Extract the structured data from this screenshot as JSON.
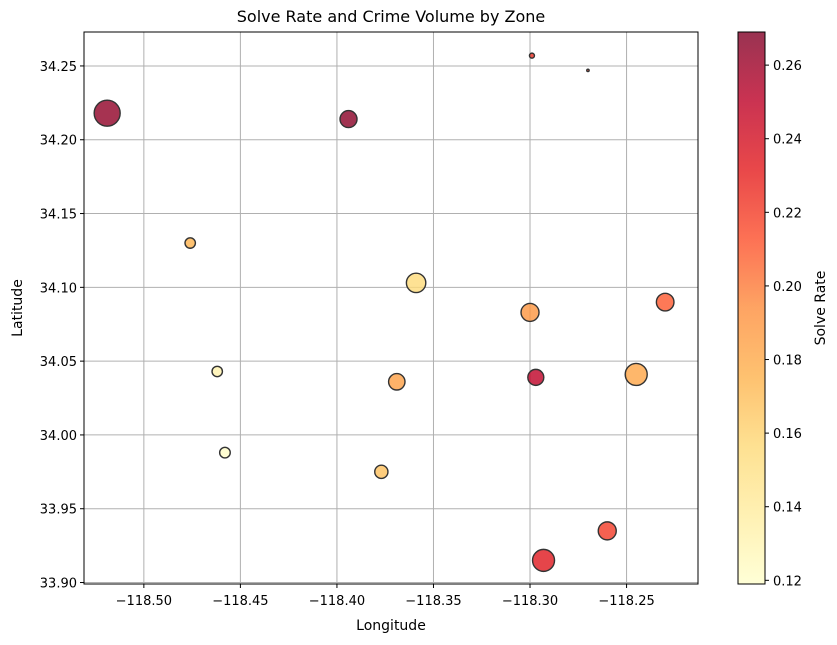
{
  "chart_data": {
    "type": "scatter",
    "title": "Solve Rate and Crime Volume by Zone",
    "xlabel": "Longitude",
    "ylabel": "Latitude",
    "xlim": [
      -118.531,
      -118.213
    ],
    "ylim": [
      33.899,
      34.273
    ],
    "xticks": [
      -118.5,
      -118.45,
      -118.4,
      -118.35,
      -118.3,
      -118.25
    ],
    "xtick_labels": [
      "−118.50",
      "−118.45",
      "−118.40",
      "−118.35",
      "−118.30",
      "−118.25"
    ],
    "yticks": [
      33.9,
      33.95,
      34.0,
      34.05,
      34.1,
      34.15,
      34.2,
      34.25
    ],
    "ytick_labels": [
      "33.90",
      "33.95",
      "34.00",
      "34.05",
      "34.10",
      "34.15",
      "34.20",
      "34.25"
    ],
    "grid": true,
    "colorbar": {
      "label": "Solve Rate",
      "min": 0.119,
      "max": 0.269,
      "colormap": "YlOrRd",
      "alpha": 0.8,
      "ticks": [
        0.12,
        0.14,
        0.16,
        0.18,
        0.2,
        0.22,
        0.24,
        0.26
      ],
      "tick_labels": [
        "0.12",
        "0.14",
        "0.16",
        "0.18",
        "0.20",
        "0.22",
        "0.24",
        "0.26"
      ]
    },
    "points": [
      {
        "x": -118.519,
        "y": 34.218,
        "solve_rate": 0.264,
        "size": 13.0
      },
      {
        "x": -118.394,
        "y": 34.214,
        "solve_rate": 0.266,
        "size": 8.5
      },
      {
        "x": -118.299,
        "y": 34.257,
        "solve_rate": 0.225,
        "size": 2.5
      },
      {
        "x": -118.27,
        "y": 34.247,
        "solve_rate": 0.22,
        "size": 1.2
      },
      {
        "x": -118.476,
        "y": 34.13,
        "solve_rate": 0.175,
        "size": 5.2
      },
      {
        "x": -118.359,
        "y": 34.103,
        "solve_rate": 0.155,
        "size": 9.7
      },
      {
        "x": -118.3,
        "y": 34.083,
        "solve_rate": 0.19,
        "size": 9.0
      },
      {
        "x": -118.23,
        "y": 34.09,
        "solve_rate": 0.21,
        "size": 8.8
      },
      {
        "x": -118.462,
        "y": 34.043,
        "solve_rate": 0.132,
        "size": 5.2
      },
      {
        "x": -118.369,
        "y": 34.036,
        "solve_rate": 0.185,
        "size": 8.2
      },
      {
        "x": -118.297,
        "y": 34.039,
        "solve_rate": 0.25,
        "size": 8.0
      },
      {
        "x": -118.245,
        "y": 34.041,
        "solve_rate": 0.182,
        "size": 11.0
      },
      {
        "x": -118.458,
        "y": 33.988,
        "solve_rate": 0.121,
        "size": 5.3
      },
      {
        "x": -118.377,
        "y": 33.975,
        "solve_rate": 0.168,
        "size": 6.6
      },
      {
        "x": -118.26,
        "y": 33.935,
        "solve_rate": 0.22,
        "size": 9.0
      },
      {
        "x": -118.293,
        "y": 33.915,
        "solve_rate": 0.234,
        "size": 11.0
      }
    ]
  }
}
